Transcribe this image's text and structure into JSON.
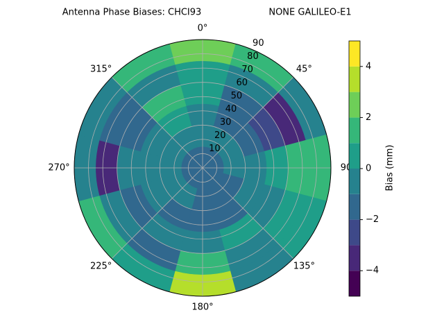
{
  "chart_data": {
    "type": "polar-contour",
    "title": "Antenna Phase Biases: CHCI93",
    "subtitle": "NONE GALILEO-E1",
    "colorbar_label": "Bias (mm)",
    "rlim": [
      0,
      90
    ],
    "rticks": [
      10,
      20,
      30,
      40,
      50,
      60,
      70,
      80,
      90
    ],
    "theta_ticks": [
      {
        "value": 0,
        "label": "0°"
      },
      {
        "value": 45,
        "label": "45°"
      },
      {
        "value": 90,
        "label": "90"
      },
      {
        "value": 135,
        "label": "135°"
      },
      {
        "value": 180,
        "label": "180°"
      },
      {
        "value": 225,
        "label": "225°"
      },
      {
        "value": 270,
        "label": "270°"
      },
      {
        "value": 315,
        "label": "315°"
      }
    ],
    "azimuth": [
      0,
      30,
      60,
      90,
      120,
      150,
      180,
      210,
      240,
      270,
      300,
      330
    ],
    "zenith": [
      7.5,
      22.5,
      37.5,
      52.5,
      67.5,
      82.5
    ],
    "z": [
      [
        -1.2,
        -0.8,
        -0.5,
        0.5,
        0.5,
        2.5
      ],
      [
        -1.2,
        -0.8,
        -1.5,
        -2,
        -1,
        1
      ],
      [
        -1.2,
        -1,
        -1.5,
        -2.5,
        -3.5,
        -1
      ],
      [
        -1.2,
        -1,
        -0.5,
        0.5,
        1.5,
        1
      ],
      [
        -1.2,
        -1.5,
        -1,
        -0.5,
        0.5,
        0.5
      ],
      [
        -1.2,
        -1.5,
        -1.5,
        0.5,
        -1,
        -0.5
      ],
      [
        -1.2,
        -1.5,
        -1.5,
        -0.5,
        1.5,
        3.5
      ],
      [
        -1.2,
        -1,
        -1.5,
        -1,
        -2,
        0.5
      ],
      [
        -1.2,
        -1,
        -0.5,
        -1.5,
        -1,
        1.5
      ],
      [
        -1.2,
        -0.5,
        -0.5,
        -1,
        -3.5,
        -0.5
      ],
      [
        -1.2,
        -0.5,
        -1,
        -2,
        -1.5,
        -0.5
      ],
      [
        -1.2,
        -0.5,
        0.5,
        1.5,
        -0.5,
        1
      ]
    ],
    "levels": [
      -5,
      -4,
      -3,
      -2,
      -1,
      0,
      1,
      2,
      3,
      4,
      5
    ],
    "colors": [
      "#440154",
      "#482878",
      "#3e4989",
      "#31688e",
      "#26828e",
      "#1f9e89",
      "#35b779",
      "#6ece58",
      "#b5de2b",
      "#fde725"
    ],
    "clim": [
      -5,
      5
    ],
    "cticks": [
      {
        "value": -4,
        "label": "−4"
      },
      {
        "value": -2,
        "label": "−2"
      },
      0,
      2,
      4
    ]
  }
}
